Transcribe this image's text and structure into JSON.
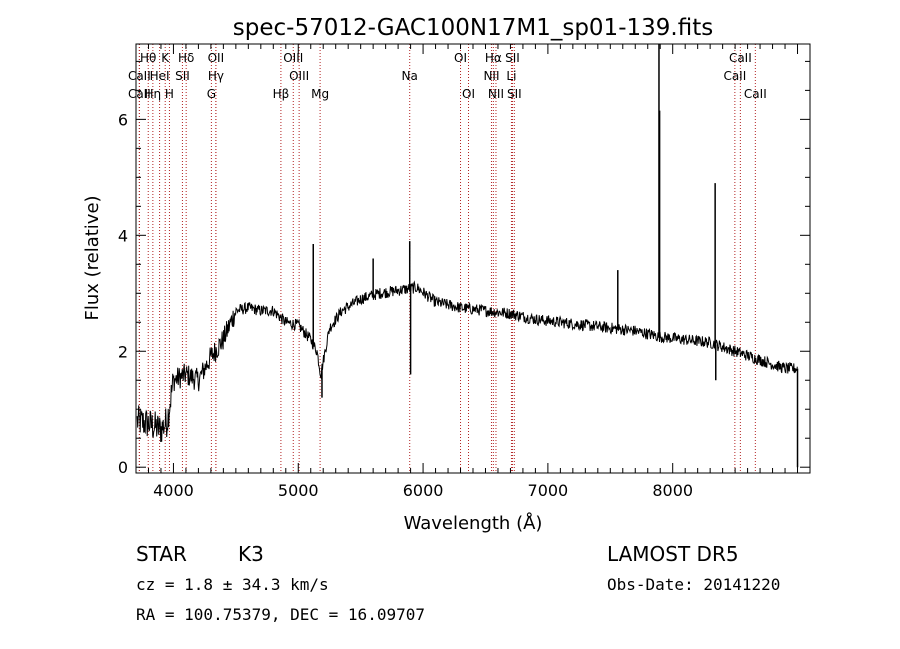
{
  "chart_data": {
    "type": "line",
    "title": "spec-57012-GAC100N17M1_sp01-139.fits",
    "xlabel": "Wavelength (Å)",
    "ylabel": "Flux (relative)",
    "xlim": [
      3700,
      9100
    ],
    "ylim": [
      -0.1,
      7.3
    ],
    "x_ticks": [
      4000,
      5000,
      6000,
      7000,
      8000
    ],
    "y_ticks": [
      0,
      2,
      4,
      6
    ],
    "grid": false,
    "line_color": "#000000",
    "marker_color": "#b22222",
    "lines": [
      {
        "label": "Hθ",
        "x": 3798,
        "row": 0
      },
      {
        "label": "K",
        "x": 3934,
        "row": 0
      },
      {
        "label": "Hδ",
        "x": 4102,
        "row": 0
      },
      {
        "label": "OII",
        "x": 4340,
        "row": 0
      },
      {
        "label": "OIII",
        "x": 4960,
        "row": 0
      },
      {
        "label": "OI",
        "x": 6300,
        "row": 0
      },
      {
        "label": "Hα",
        "x": 6563,
        "row": 0
      },
      {
        "label": "SII",
        "x": 6716,
        "row": 0
      },
      {
        "label": "CaII",
        "x": 8542,
        "row": 0
      },
      {
        "label": "CaII",
        "x": 3727,
        "row": 1
      },
      {
        "label": "HeI",
        "x": 3889,
        "row": 1
      },
      {
        "label": "SII",
        "x": 4072,
        "row": 1
      },
      {
        "label": "Hγ",
        "x": 4340,
        "row": 1
      },
      {
        "label": "OIII",
        "x": 5007,
        "row": 1
      },
      {
        "label": "NII",
        "x": 6548,
        "row": 1
      },
      {
        "label": "Li",
        "x": 6708,
        "row": 1
      },
      {
        "label": "CaII",
        "x": 8498,
        "row": 1
      },
      {
        "label": "CaII",
        "x": 3727,
        "row": 2
      },
      {
        "label": "Hη",
        "x": 3835,
        "row": 2
      },
      {
        "label": "H",
        "x": 3968,
        "row": 2
      },
      {
        "label": "G",
        "x": 4304,
        "row": 2
      },
      {
        "label": "Hβ",
        "x": 4861,
        "row": 2
      },
      {
        "label": "Mg",
        "x": 5175,
        "row": 2
      },
      {
        "label": "Na",
        "x": 5893,
        "row": 1
      },
      {
        "label": "OI",
        "x": 6364,
        "row": 2
      },
      {
        "label": "NII",
        "x": 6584,
        "row": 2
      },
      {
        "label": "SII",
        "x": 6731,
        "row": 2
      },
      {
        "label": "CaII",
        "x": 8662,
        "row": 2
      }
    ],
    "continuum": [
      [
        3700,
        0.8
      ],
      [
        3800,
        0.75
      ],
      [
        3900,
        0.65
      ],
      [
        3950,
        0.8
      ],
      [
        4000,
        1.5
      ],
      [
        4100,
        1.6
      ],
      [
        4200,
        1.5
      ],
      [
        4300,
        1.9
      ],
      [
        4400,
        2.2
      ],
      [
        4500,
        2.7
      ],
      [
        4600,
        2.75
      ],
      [
        4700,
        2.7
      ],
      [
        4800,
        2.7
      ],
      [
        4900,
        2.5
      ],
      [
        5000,
        2.45
      ],
      [
        5100,
        2.2
      ],
      [
        5150,
        2.0
      ],
      [
        5180,
        1.6
      ],
      [
        5250,
        2.4
      ],
      [
        5350,
        2.7
      ],
      [
        5500,
        2.9
      ],
      [
        5650,
        3.0
      ],
      [
        5800,
        3.05
      ],
      [
        5950,
        3.1
      ],
      [
        6100,
        2.85
      ],
      [
        6300,
        2.75
      ],
      [
        6500,
        2.7
      ],
      [
        6700,
        2.65
      ],
      [
        6900,
        2.55
      ],
      [
        7100,
        2.5
      ],
      [
        7300,
        2.45
      ],
      [
        7500,
        2.4
      ],
      [
        7700,
        2.35
      ],
      [
        7900,
        2.25
      ],
      [
        8100,
        2.2
      ],
      [
        8300,
        2.15
      ],
      [
        8500,
        2.0
      ],
      [
        8700,
        1.85
      ],
      [
        8900,
        1.7
      ],
      [
        9000,
        1.7
      ]
    ],
    "spikes": [
      {
        "x": 5120,
        "y": 3.85
      },
      {
        "x": 5190,
        "y": 1.2
      },
      {
        "x": 5600,
        "y": 3.6
      },
      {
        "x": 5893,
        "y": 3.9
      },
      {
        "x": 5900,
        "y": 1.6
      },
      {
        "x": 7560,
        "y": 3.4
      },
      {
        "x": 7890,
        "y": 7.3
      },
      {
        "x": 7895,
        "y": 6.15
      },
      {
        "x": 8340,
        "y": 4.9
      },
      {
        "x": 8345,
        "y": 1.5
      },
      {
        "x": 9000,
        "y": 0.0
      }
    ]
  },
  "footer": {
    "class_label": "STAR",
    "subclass": "K3",
    "survey": "LAMOST DR5",
    "cz": "cz = 1.8 ± 34.3 km/s",
    "obs_date": "Obs-Date: 20141220",
    "coords": "RA = 100.75379, DEC =  16.09707"
  }
}
